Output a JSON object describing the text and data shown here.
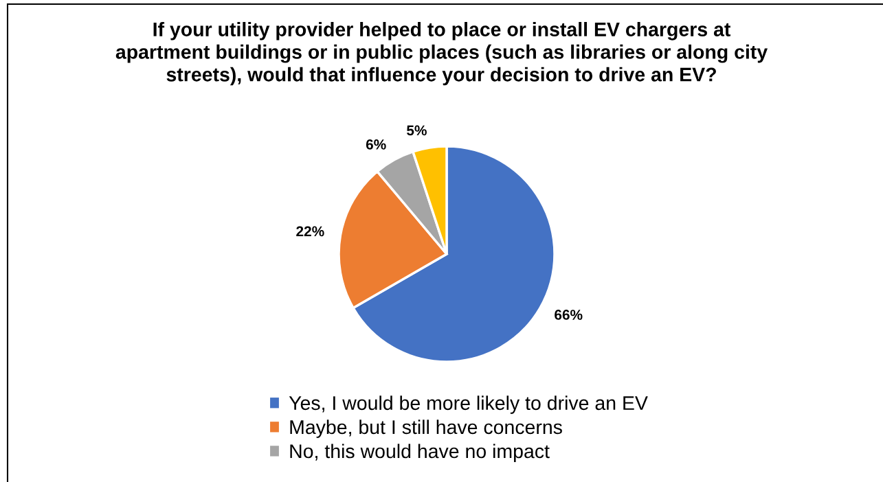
{
  "chart_data": {
    "type": "pie",
    "title": "If your utility provider helped to place or install EV chargers at\napartment buildings or in public places (such as libraries or along city\nstreets), would that influence your decision to drive an EV?",
    "categories": [
      "Yes, I would be more likely to drive an EV",
      "Maybe, but I still have concerns",
      "No, this would have no impact",
      null
    ],
    "values": [
      66,
      22,
      6,
      5
    ],
    "colors": [
      "#4472c4",
      "#ed7d31",
      "#a5a5a5",
      "#ffc000"
    ],
    "value_labels": [
      "66%",
      "22%",
      "6%",
      "5%"
    ],
    "legend": "bottom"
  }
}
